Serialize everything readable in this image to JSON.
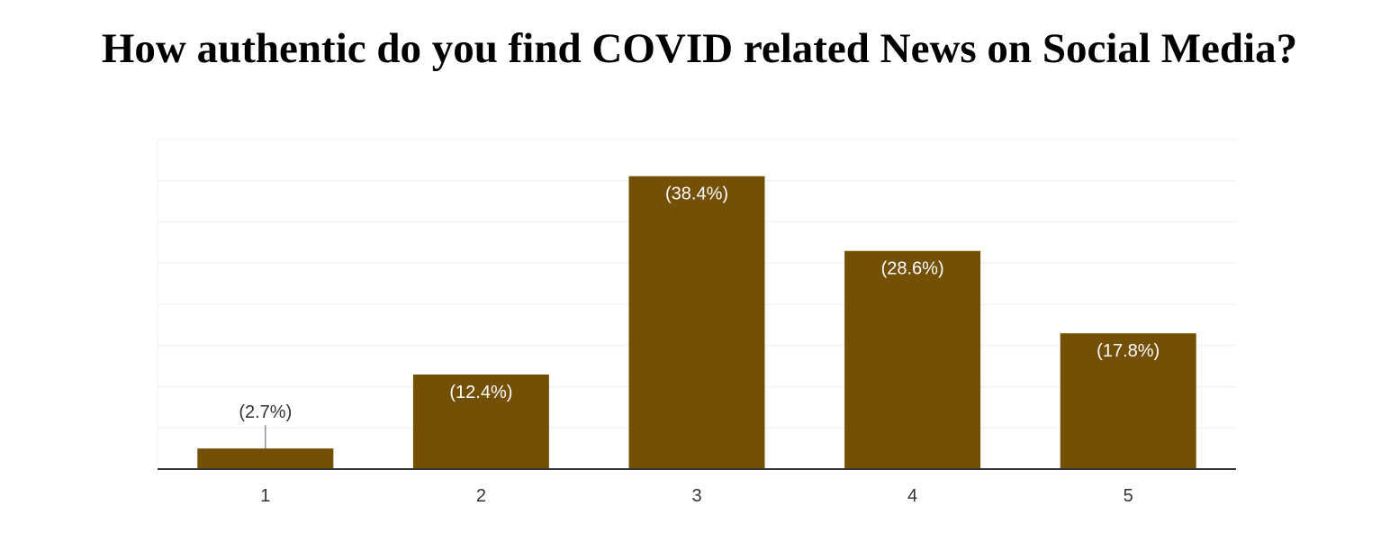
{
  "chart_data": {
    "type": "bar",
    "title": "How authentic do you find COVID related News on Social Media?",
    "categories": [
      "1",
      "2",
      "3",
      "4",
      "5"
    ],
    "values": [
      2.7,
      12.4,
      38.4,
      28.6,
      17.8
    ],
    "value_labels": [
      "(2.7%)",
      "(12.4%)",
      "(38.4%)",
      "(28.6%)",
      "(17.8%)"
    ],
    "ylim": [
      0,
      43.2
    ],
    "grid": true,
    "legend": "none",
    "colors": {
      "bar": "#735006",
      "label_inside": "#ffffff",
      "label_outside": "#333333",
      "grid": "#eeeeee",
      "axis": "#333333"
    }
  }
}
